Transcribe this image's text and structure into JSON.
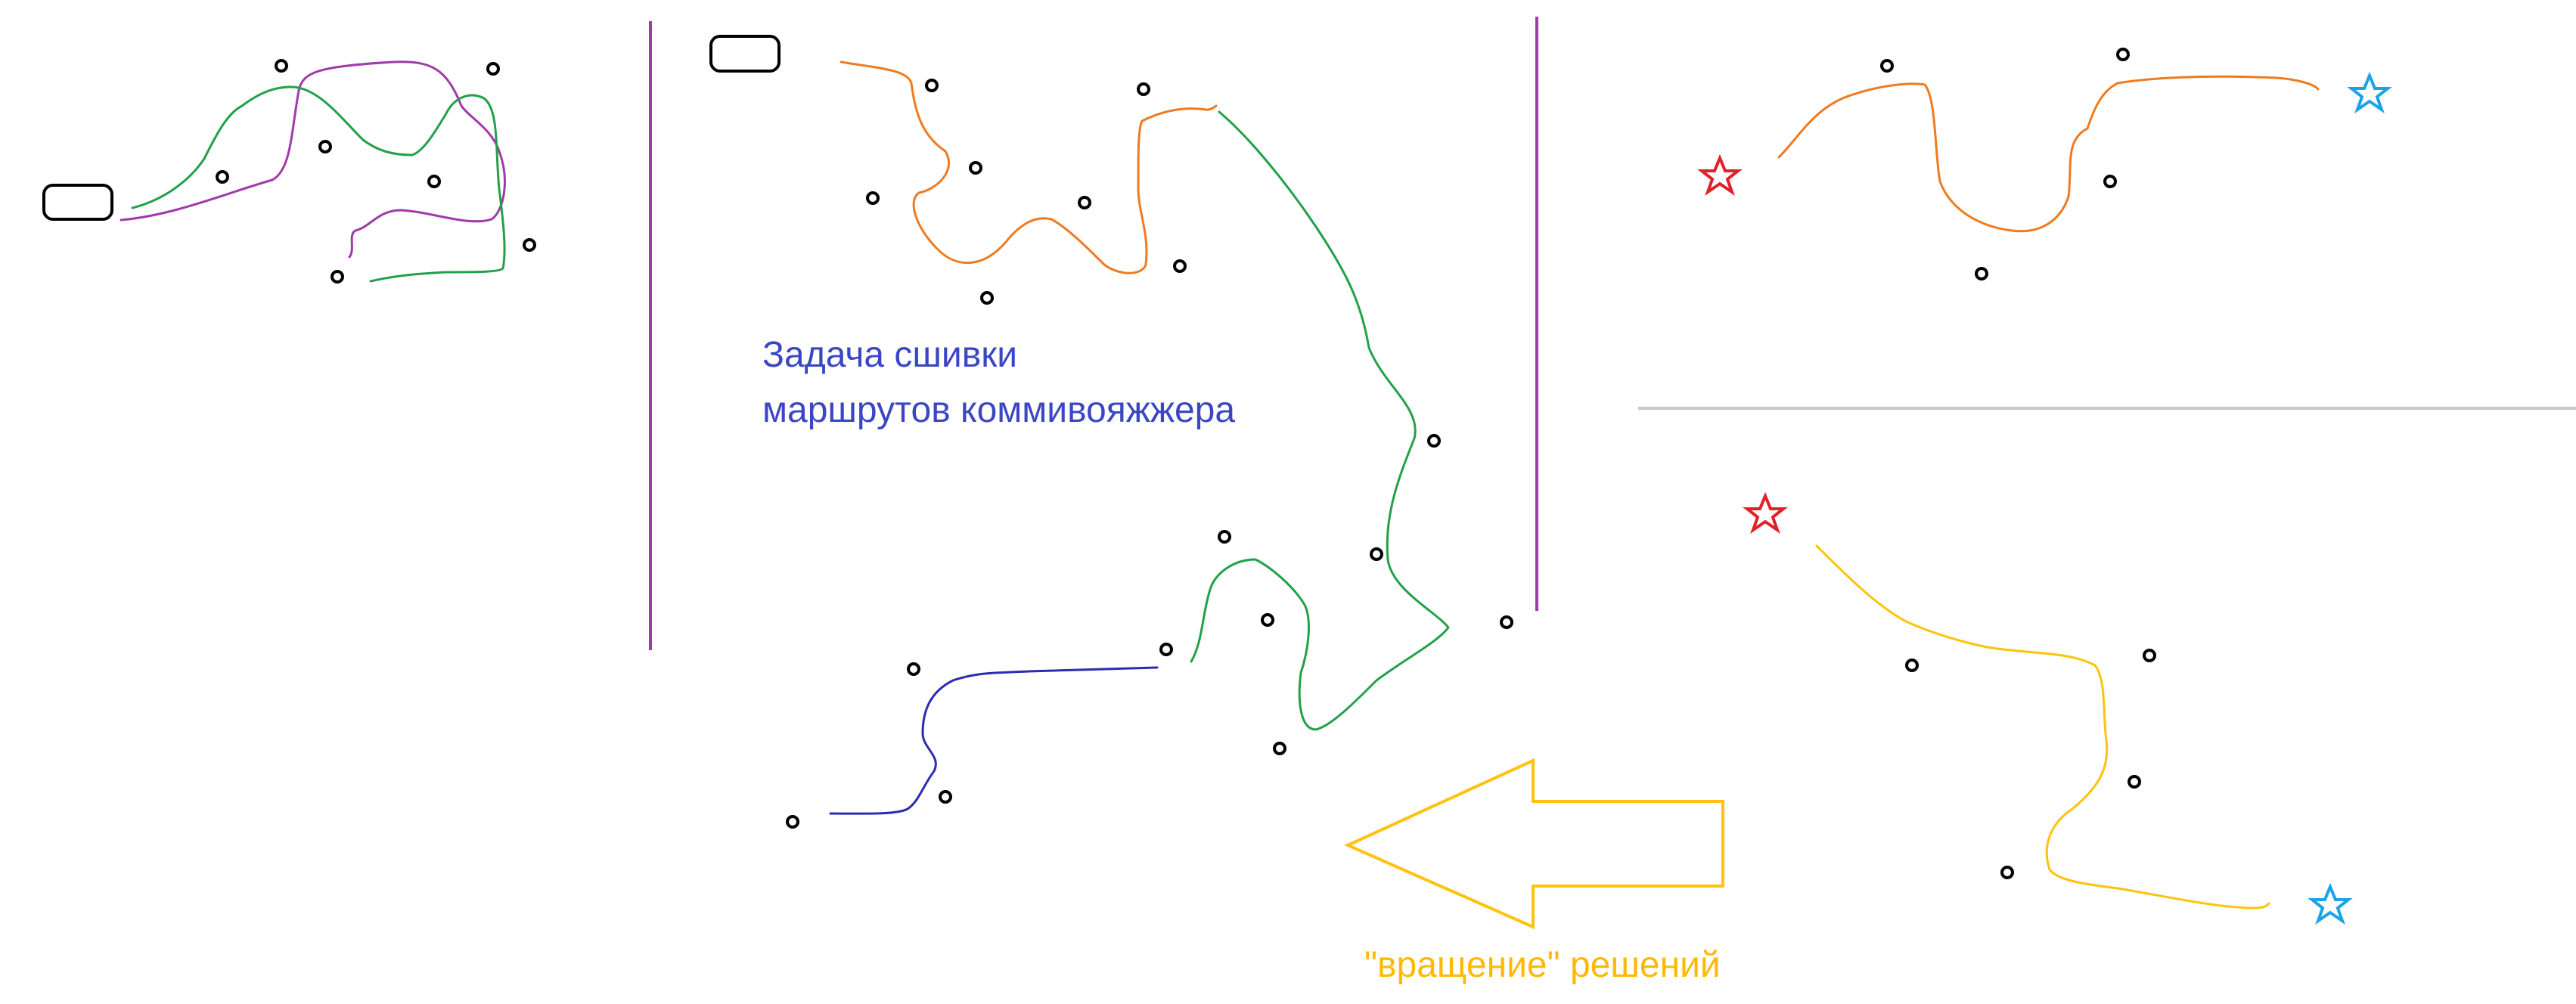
{
  "labels": {
    "main": [
      "Задача сшивки",
      "маршрутов коммивояжжера"
    ],
    "rotation": "\"вращение\" решений"
  },
  "colors": {
    "purple": "#a03aa8",
    "green": "#22a04a",
    "orange": "#f07a1e",
    "blue": "#2c2cb0",
    "yellow": "#ffc20e",
    "red": "#e0202a",
    "cyan": "#1aa3e8",
    "grey": "#c8c8c8",
    "label_blue": "#3b46c4",
    "label_yellow": "#ffb900"
  },
  "icons": [
    "depot-icon",
    "point-icon",
    "start-star-icon",
    "end-star-icon",
    "arrow-left-icon"
  ]
}
